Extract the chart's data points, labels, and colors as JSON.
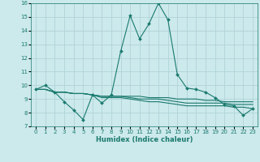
{
  "title": "",
  "xlabel": "Humidex (Indice chaleur)",
  "bg_color": "#cce9ec",
  "grid_color": "#b0d4d8",
  "line_color": "#1a7a6e",
  "xlim": [
    -0.5,
    23.5
  ],
  "ylim": [
    7,
    16
  ],
  "yticks": [
    7,
    8,
    9,
    10,
    11,
    12,
    13,
    14,
    15,
    16
  ],
  "xticks": [
    0,
    1,
    2,
    3,
    4,
    5,
    6,
    7,
    8,
    9,
    10,
    11,
    12,
    13,
    14,
    15,
    16,
    17,
    18,
    19,
    20,
    21,
    22,
    23
  ],
  "lines": [
    {
      "x": [
        0,
        1,
        2,
        3,
        4,
        5,
        6,
        7,
        8,
        9,
        10,
        11,
        12,
        13,
        14,
        15,
        16,
        17,
        18,
        19,
        20,
        21,
        22,
        23
      ],
      "y": [
        9.7,
        10.0,
        9.5,
        8.8,
        8.2,
        7.5,
        9.3,
        8.7,
        9.3,
        12.5,
        15.1,
        13.4,
        14.5,
        16.0,
        14.8,
        10.8,
        9.8,
        9.7,
        9.5,
        9.1,
        8.6,
        8.5,
        7.8,
        8.3
      ],
      "marker": true
    },
    {
      "x": [
        0,
        1,
        2,
        3,
        4,
        5,
        6,
        7,
        8,
        9,
        10,
        11,
        12,
        13,
        14,
        15,
        16,
        17,
        18,
        19,
        20,
        21,
        22,
        23
      ],
      "y": [
        9.7,
        9.7,
        9.5,
        9.5,
        9.4,
        9.4,
        9.3,
        9.2,
        9.2,
        9.2,
        9.2,
        9.2,
        9.1,
        9.1,
        9.1,
        9.0,
        9.0,
        9.0,
        8.9,
        8.9,
        8.8,
        8.8,
        8.8,
        8.8
      ],
      "marker": false
    },
    {
      "x": [
        0,
        1,
        2,
        3,
        4,
        5,
        6,
        7,
        8,
        9,
        10,
        11,
        12,
        13,
        14,
        15,
        16,
        17,
        18,
        19,
        20,
        21,
        22,
        23
      ],
      "y": [
        9.7,
        9.7,
        9.5,
        9.5,
        9.4,
        9.4,
        9.3,
        9.2,
        9.2,
        9.2,
        9.1,
        9.0,
        9.0,
        9.0,
        8.9,
        8.8,
        8.7,
        8.7,
        8.7,
        8.7,
        8.7,
        8.6,
        8.6,
        8.6
      ],
      "marker": false
    },
    {
      "x": [
        0,
        1,
        2,
        3,
        4,
        5,
        6,
        7,
        8,
        9,
        10,
        11,
        12,
        13,
        14,
        15,
        16,
        17,
        18,
        19,
        20,
        21,
        22,
        23
      ],
      "y": [
        9.7,
        9.7,
        9.5,
        9.5,
        9.4,
        9.4,
        9.3,
        9.1,
        9.1,
        9.1,
        9.0,
        8.9,
        8.8,
        8.8,
        8.7,
        8.6,
        8.5,
        8.5,
        8.5,
        8.5,
        8.5,
        8.4,
        8.4,
        8.3
      ],
      "marker": false
    }
  ]
}
